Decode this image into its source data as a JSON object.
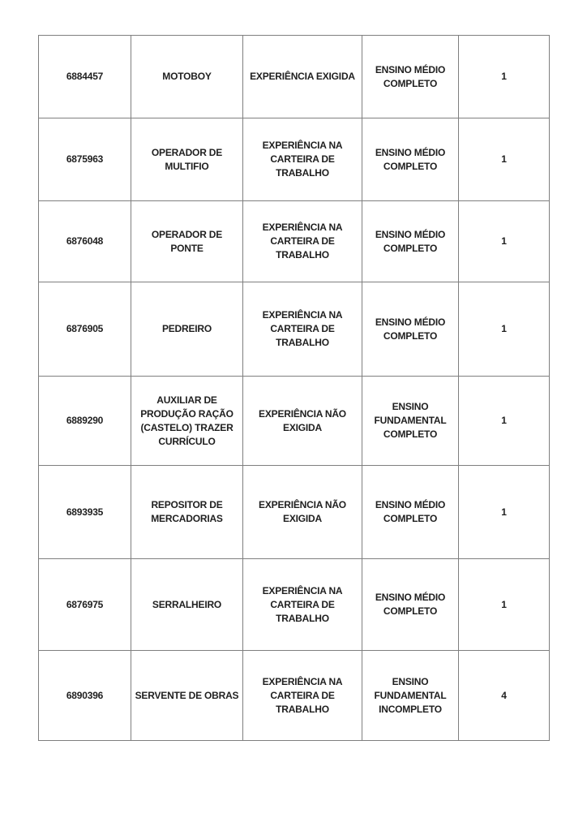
{
  "page": {
    "background_color": "#ffffff",
    "text_color": "#1f1f1f",
    "grid_color": "#7f7f7f"
  },
  "table": {
    "rows": [
      {
        "id": "6884457",
        "occupation": "MOTOBOY",
        "experience": "EXPERIÊNCIA EXIGIDA",
        "education": "ENSINO MÉDIO\nCOMPLETO",
        "vacancies": "1"
      },
      {
        "id": "6875963",
        "occupation": "OPERADOR DE\nMULTIFIO",
        "experience": "EXPERIÊNCIA NA\nCARTEIRA DE\nTRABALHO",
        "education": "ENSINO MÉDIO\nCOMPLETO",
        "vacancies": "1"
      },
      {
        "id": "6876048",
        "occupation": "OPERADOR DE\nPONTE",
        "experience": "EXPERIÊNCIA NA\nCARTEIRA DE\nTRABALHO",
        "education": "ENSINO MÉDIO\nCOMPLETO",
        "vacancies": "1"
      },
      {
        "id": "6876905",
        "occupation": "PEDREIRO",
        "experience": "EXPERIÊNCIA NA\nCARTEIRA DE\nTRABALHO",
        "education": "ENSINO MÉDIO\nCOMPLETO",
        "vacancies": "1"
      },
      {
        "id": "6889290",
        "occupation": "AUXILIAR DE\nPRODUÇÃO RAÇÃO\n(CASTELO) TRAZER\nCURRÍCULO",
        "experience": "EXPERIÊNCIA NÃO\nEXIGIDA",
        "education": "ENSINO\nFUNDAMENTAL\nCOMPLETO",
        "vacancies": "1"
      },
      {
        "id": "6893935",
        "occupation": "REPOSITOR DE\nMERCADORIAS",
        "experience": "EXPERIÊNCIA NÃO\nEXIGIDA",
        "education": "ENSINO MÉDIO\nCOMPLETO",
        "vacancies": "1"
      },
      {
        "id": "6876975",
        "occupation": "SERRALHEIRO",
        "experience": "EXPERIÊNCIA NA\nCARTEIRA DE\nTRABALHO",
        "education": "ENSINO MÉDIO\nCOMPLETO",
        "vacancies": "1"
      },
      {
        "id": "6890396",
        "occupation": "SERVENTE DE OBRAS",
        "experience": "EXPERIÊNCIA NA\nCARTEIRA DE\nTRABALHO",
        "education": "ENSINO\nFUNDAMENTAL\nINCOMPLETO",
        "vacancies": "4"
      }
    ]
  }
}
